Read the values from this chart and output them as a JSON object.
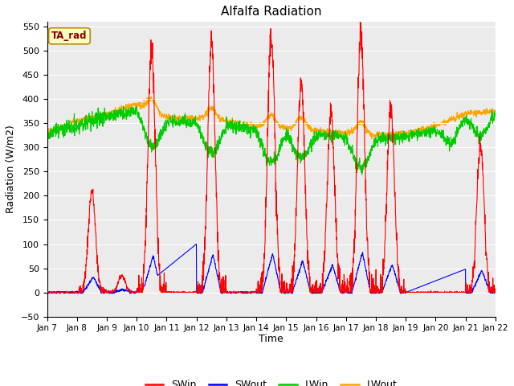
{
  "title": "Alfalfa Radiation",
  "xlabel": "Time",
  "ylabel": "Radiation (W/m2)",
  "ylim": [
    -50,
    560
  ],
  "yticks": [
    -50,
    0,
    50,
    100,
    150,
    200,
    250,
    300,
    350,
    400,
    450,
    500,
    550
  ],
  "background_color": "#ebebeb",
  "legend_label": "TA_rad",
  "series_colors": {
    "SWin": "#ff0000",
    "SWout": "#0000ff",
    "LWin": "#00cc00",
    "LWout": "#ffa500"
  },
  "days": [
    "Jan 7",
    "Jan 8",
    "Jan 9",
    "Jan 10",
    "Jan 11",
    "Jan 12",
    "Jan 13",
    "Jan 14",
    "Jan 15",
    "Jan 16",
    "Jan 17",
    "Jan 18",
    "Jan 19",
    "Jan 20",
    "Jan 21",
    "Jan 22"
  ],
  "figsize": [
    6.4,
    4.8
  ],
  "dpi": 100
}
